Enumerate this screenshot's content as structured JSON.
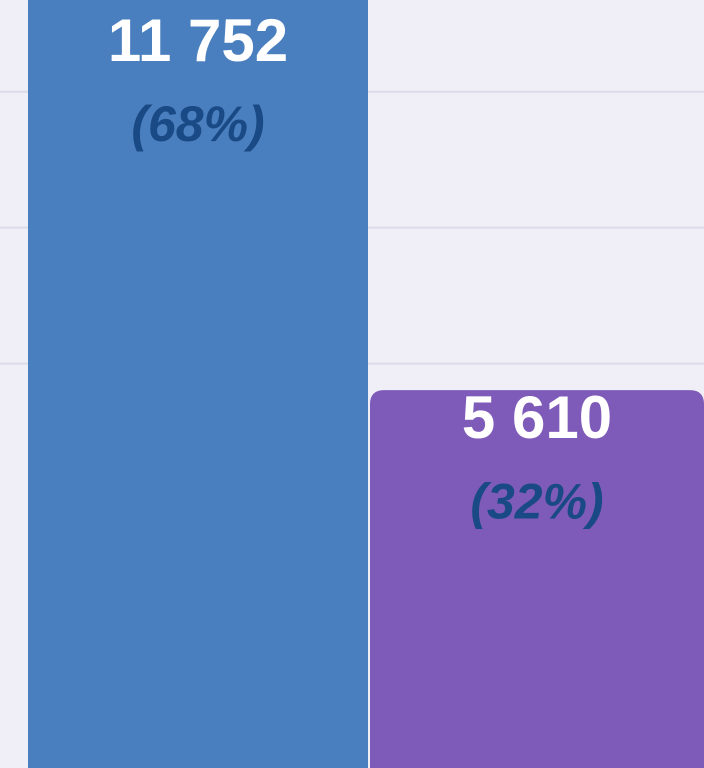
{
  "chart_data": {
    "type": "bar",
    "series": [
      {
        "values": [
          11752,
          5610
        ],
        "value_labels": [
          "11 752",
          "5 610"
        ],
        "colors": [
          "#4a7fbf",
          "#7e5bb8"
        ],
        "shares": [
          68,
          32
        ],
        "share_labels": [
          "(68%)",
          "(32%)"
        ]
      }
    ],
    "ylim": [
      50,
      11350
    ],
    "yticks": [
      6000,
      8000,
      10000
    ],
    "grid": true
  }
}
